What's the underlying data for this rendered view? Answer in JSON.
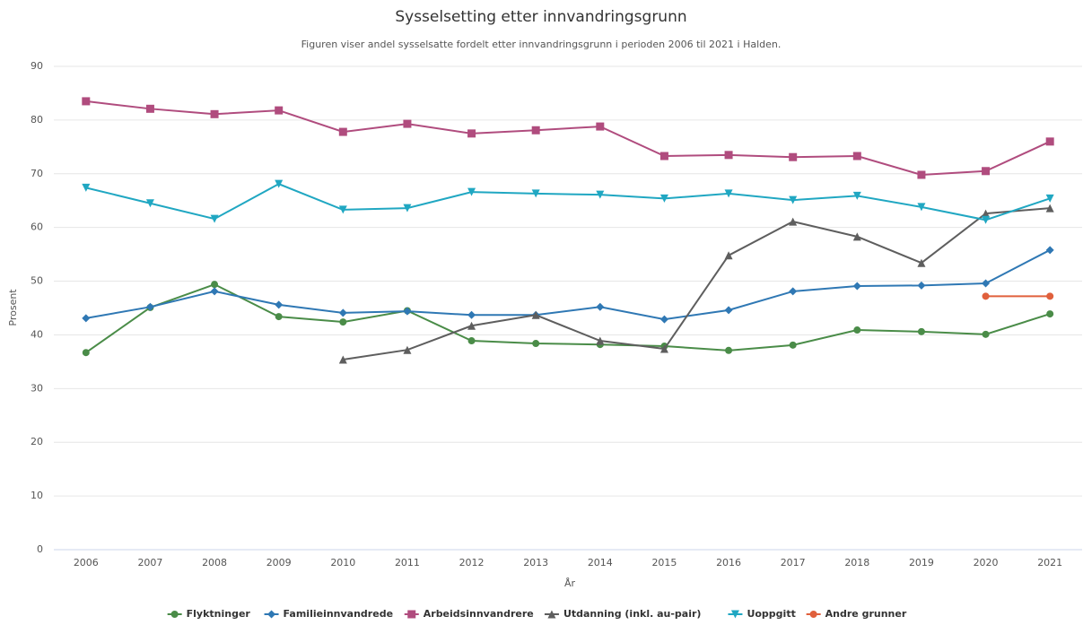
{
  "chart_data": {
    "type": "line",
    "title": "Sysselsetting etter innvandringsgrunn",
    "subtitle": "Figuren viser andel sysselsatte fordelt etter innvandringsgrunn i perioden 2006 til 2021 i Halden.",
    "x_label": "År",
    "y_label": "Prosent",
    "categories": [
      "2006",
      "2007",
      "2008",
      "2009",
      "2010",
      "2011",
      "2012",
      "2013",
      "2014",
      "2015",
      "2016",
      "2017",
      "2018",
      "2019",
      "2020",
      "2021"
    ],
    "ylim": [
      0,
      90
    ],
    "yticks": [
      0,
      10,
      20,
      30,
      40,
      50,
      60,
      70,
      80,
      90
    ],
    "grid": true,
    "legend": "bottom",
    "series": [
      {
        "name": "Flyktninger",
        "color": "#4a8c48",
        "symbol": "circle",
        "values": [
          36.7,
          45.1,
          49.4,
          43.4,
          42.4,
          44.5,
          38.9,
          38.4,
          38.2,
          37.9,
          37.1,
          38.1,
          40.9,
          40.6,
          40.1,
          43.9
        ]
      },
      {
        "name": "Familieinnvandrede",
        "color": "#2f78b4",
        "symbol": "diamond",
        "values": [
          43.1,
          45.2,
          48.1,
          45.6,
          44.1,
          44.4,
          43.7,
          43.7,
          45.2,
          42.9,
          44.6,
          48.1,
          49.1,
          49.2,
          49.6,
          55.8
        ]
      },
      {
        "name": "Arbeidsinnvandrere",
        "color": "#b04c7e",
        "symbol": "square",
        "values": [
          83.5,
          82.1,
          81.1,
          81.8,
          77.8,
          79.3,
          77.5,
          78.1,
          78.8,
          73.3,
          73.5,
          73.1,
          73.3,
          69.8,
          70.5,
          76.0
        ]
      },
      {
        "name": "Utdanning (inkl. au-pair)",
        "color": "#5e5e5e",
        "symbol": "triangle",
        "values": [
          null,
          null,
          null,
          null,
          35.4,
          37.2,
          41.7,
          43.7,
          38.9,
          37.4,
          54.8,
          61.1,
          58.3,
          53.4,
          62.6,
          63.6
        ]
      },
      {
        "name": "Uoppgitt",
        "color": "#20a7c2",
        "symbol": "triangle-down",
        "values": [
          67.4,
          64.5,
          61.6,
          68.1,
          63.3,
          63.6,
          66.6,
          66.3,
          66.1,
          65.4,
          66.3,
          65.1,
          65.9,
          63.8,
          61.4,
          65.4
        ]
      },
      {
        "name": "Andre grunner",
        "color": "#e0603c",
        "symbol": "circle",
        "values": [
          null,
          null,
          null,
          null,
          null,
          null,
          null,
          null,
          null,
          null,
          null,
          null,
          null,
          null,
          47.2,
          47.2
        ]
      }
    ]
  }
}
